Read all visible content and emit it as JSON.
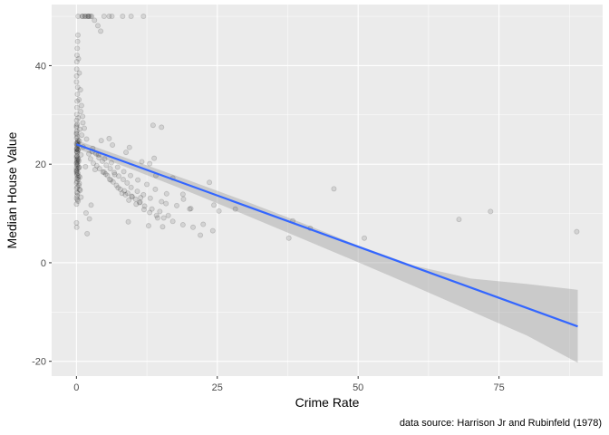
{
  "chart_data": {
    "type": "scatter",
    "xlabel": "Crime Rate",
    "ylabel": "Median House Value",
    "caption": "data source: Harrison Jr and Rubinfeld (1978)",
    "xlim": [
      -4.4,
      93.4
    ],
    "ylim": [
      -23,
      52.4
    ],
    "x_ticks": [
      0,
      25,
      50,
      75
    ],
    "y_ticks": [
      -20,
      0,
      20,
      40
    ],
    "grid": true,
    "colors": {
      "panel": "#ebebeb",
      "grid": "#ffffff",
      "points": "#000000",
      "fit_line": "#3366ff",
      "ribbon": "#999999"
    },
    "points_x": [
      0.01,
      0.02,
      0.03,
      0.03,
      0.05,
      0.08,
      0.09,
      0.1,
      0.12,
      0.15,
      0.2,
      0.25,
      0.3,
      0.4,
      0.5,
      0.6,
      0.8,
      1.2,
      1.6,
      2.2,
      0.01,
      0.02,
      0.04,
      0.06,
      0.09,
      0.13,
      0.17,
      0.22,
      0.3,
      0.45,
      0.6,
      0.75,
      0.95,
      1.15,
      0.01,
      0.03,
      0.05,
      0.07,
      0.1,
      0.14,
      0.2,
      0.26,
      0.35,
      0.5,
      0.7,
      0.9,
      1.1,
      1.4,
      1.8,
      0.02,
      0.04,
      0.08,
      0.12,
      0.18,
      0.24,
      0.32,
      0.42,
      0.55,
      0.01,
      0.03,
      0.06,
      0.09,
      0.15,
      0.21,
      0.28,
      0.38,
      0.5,
      0.65,
      0.8,
      0.02,
      0.05,
      0.11,
      0.19,
      0.27,
      0.36,
      0.48,
      0.01,
      0.04,
      0.07,
      0.13,
      0.23,
      0.33,
      0.02,
      0.06,
      0.1,
      0.16,
      0.25,
      0.03,
      0.08,
      0.14,
      0.22,
      0.04,
      0.12,
      0.2,
      0.02,
      0.07,
      0.18,
      0.09,
      0.05,
      0.01,
      0.3,
      1.6,
      2.1,
      2.7,
      3.2,
      3.8,
      4.3,
      4.9,
      5.5,
      6.1,
      6.8,
      7.4,
      8.1,
      8.7,
      9.3,
      9.9,
      10.6,
      11.3,
      12,
      13,
      14.2,
      15.5,
      17.1,
      18.9,
      20.7,
      22.5,
      24.2,
      1.9,
      2.5,
      3,
      3.6,
      4.1,
      4.7,
      5.2,
      5.9,
      6.5,
      7.1,
      7.8,
      8.5,
      9.1,
      9.8,
      10.5,
      11.2,
      12.1,
      13.4,
      14.8,
      16.3,
      2.3,
      2.9,
      3.5,
      4,
      4.6,
      5.3,
      6,
      6.7,
      7.5,
      8.3,
      9,
      9.7,
      10.8,
      11.9,
      13.1,
      15.1,
      17.8,
      20.1,
      1.7,
      2.8,
      3.9,
      5,
      6.2,
      7.3,
      8.4,
      9.6,
      10.9,
      12.5,
      14,
      16,
      19,
      2.6,
      4.4,
      6.4,
      8.8,
      11.6,
      3.3,
      5.8,
      9.4,
      13.8,
      0.4,
      1.1,
      2,
      1.5,
      2.2,
      2.5,
      1,
      4.9,
      5.8,
      6.3,
      8.2,
      9.7,
      11.9,
      13.6,
      15.1,
      14.1,
      17.1,
      13,
      15.3,
      18.9,
      20.3,
      22,
      24.4,
      25.3,
      23.6,
      28.2,
      37.7,
      38.4,
      41.5,
      45.7,
      51.1,
      67.9,
      73.5,
      88.8,
      9.2,
      11.4,
      12.8,
      14.4,
      15.9,
      17.2
    ],
    "points_y": [
      19.2,
      21.4,
      23.1,
      20.3,
      18.6,
      22.5,
      24,
      17.8,
      21,
      25.6,
      19.9,
      18.2,
      22.8,
      20.6,
      24.7,
      17.4,
      21.9,
      23.5,
      19.5,
      22.1,
      26.3,
      27.8,
      28.9,
      30.1,
      31.5,
      32.8,
      34.2,
      35.6,
      29.4,
      33.1,
      27.1,
      30.7,
      25.9,
      28.4,
      36.7,
      37.9,
      39.3,
      40.8,
      42.1,
      43.5,
      44.9,
      46.2,
      41.4,
      38.5,
      35.1,
      31.9,
      29.7,
      27.3,
      25.1,
      16.2,
      15.1,
      14.3,
      13.6,
      12.8,
      17.3,
      16.9,
      15.7,
      14.9,
      11.9,
      13.1,
      18.1,
      16.5,
      15.4,
      14.1,
      12.5,
      17.6,
      16.1,
      14.7,
      13.3,
      20.1,
      21.7,
      23.3,
      24.5,
      22.9,
      20.9,
      19.3,
      24.2,
      25.3,
      26.7,
      28.1,
      21.2,
      23.9,
      18.4,
      17.1,
      19.7,
      22.3,
      24.9,
      27.5,
      20.7,
      23.7,
      19.1,
      26.1,
      21.6,
      24.4,
      18.8,
      22.6,
      20.4,
      23,
      7.2,
      8.1,
      50,
      50,
      50,
      50,
      49.2,
      48.1,
      47,
      18.4,
      17.7,
      16.8,
      17.9,
      15.2,
      14.1,
      13.8,
      12.7,
      13.4,
      11.9,
      12.3,
      10.8,
      10.2,
      9.6,
      9.1,
      8.4,
      7.7,
      7.2,
      7.8,
      6.5,
      5.9,
      21.1,
      20.2,
      19.7,
      19.1,
      18.4,
      18,
      16.9,
      16.4,
      15.7,
      14.9,
      14.6,
      14.1,
      13.5,
      12.9,
      12.2,
      11.5,
      10.9,
      10.4,
      9.6,
      8.9,
      23.2,
      22.1,
      21.3,
      20.6,
      19.8,
      19.1,
      18.3,
      17.6,
      16.9,
      16.2,
      15.3,
      14.5,
      13.8,
      13.1,
      12.4,
      11.6,
      10.9,
      10.1,
      22.6,
      21.9,
      21.1,
      20.3,
      19.4,
      18.5,
      17.7,
      16.8,
      15.9,
      14.9,
      14,
      12.9,
      11.7,
      24.8,
      23.9,
      22.4,
      20.5,
      18.9,
      25.2,
      23.4,
      21.2,
      19.4,
      50,
      50,
      50,
      50,
      50,
      50,
      50,
      50,
      50,
      50,
      50,
      50,
      27.9,
      27.5,
      17.7,
      17.2,
      20.1,
      7.3,
      13.9,
      11,
      5.6,
      11.7,
      10.5,
      16.3,
      10.9,
      5,
      8.5,
      7,
      15,
      5,
      8.8,
      10.4,
      6.3,
      8.3,
      13.2,
      7.5,
      9.1,
      12
    ]
  },
  "fit_line": {
    "x": [
      0,
      88.98
    ],
    "y": [
      24.03,
      -12.93
    ]
  },
  "ribbon": {
    "x": [
      0,
      10,
      20,
      30,
      40,
      50,
      60,
      70,
      80,
      88.98
    ],
    "lower": [
      23.2,
      18.9,
      14.4,
      9.7,
      4.9,
      0.1,
      -4.8,
      -9.8,
      -14.8,
      -20.3
    ],
    "upper": [
      24.86,
      20.8,
      16.7,
      12.5,
      8.1,
      3.5,
      -0.6,
      -3.2,
      -4.3,
      -5.5
    ]
  }
}
